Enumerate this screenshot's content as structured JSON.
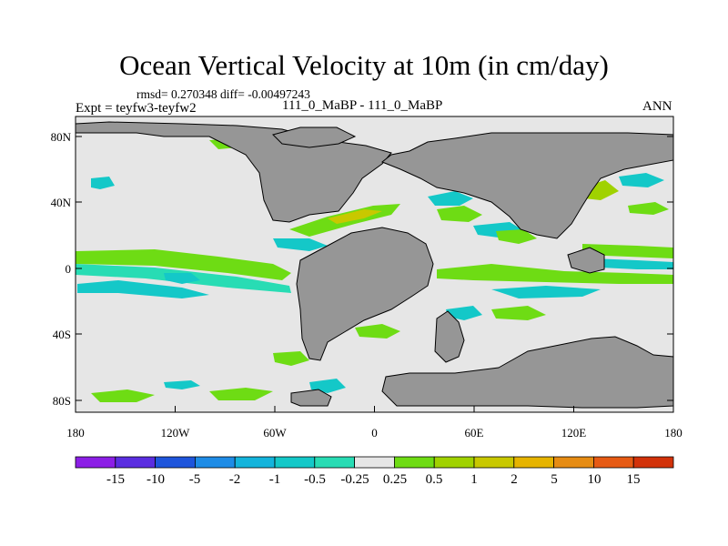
{
  "header": {
    "title": "Ocean Vertical Velocity at 10m (in cm/day)",
    "stats": "rmsd= 0.270348 diff= -0.00497243",
    "experiment": "Expt = teyfw3-teyfw2",
    "case_label": "111_0_MaBP - 111_0_MaBP",
    "season": "ANN"
  },
  "chart_data": {
    "type": "heatmap",
    "title": "Ocean Vertical Velocity at 10m (in cm/day)",
    "x_ticks": [
      "180",
      "120W",
      "60W",
      "0",
      "60E",
      "120E",
      "180"
    ],
    "y_ticks": [
      "80N",
      "40N",
      "0",
      "40S",
      "80S"
    ],
    "x_range": [
      -180,
      180
    ],
    "y_range": [
      -90,
      90
    ],
    "colorbar": {
      "labels": [
        "-15",
        "-10",
        "-5",
        "-2",
        "-1",
        "-0.5",
        "-0.25",
        "0.25",
        "0.5",
        "1",
        "2",
        "5",
        "10",
        "15"
      ],
      "colors": [
        "#8c1ee6",
        "#5a2de0",
        "#1e55dc",
        "#1e8ce6",
        "#14b4dc",
        "#14c8c8",
        "#28dcb4",
        "#e6e6e6",
        "#6edc14",
        "#a0d200",
        "#c8c800",
        "#e6b400",
        "#e68c14",
        "#e65a14",
        "#d2320a"
      ]
    },
    "colors": {
      "land": "#969696",
      "ocean": "#e6e6e6",
      "land_outline": "#000000"
    }
  }
}
